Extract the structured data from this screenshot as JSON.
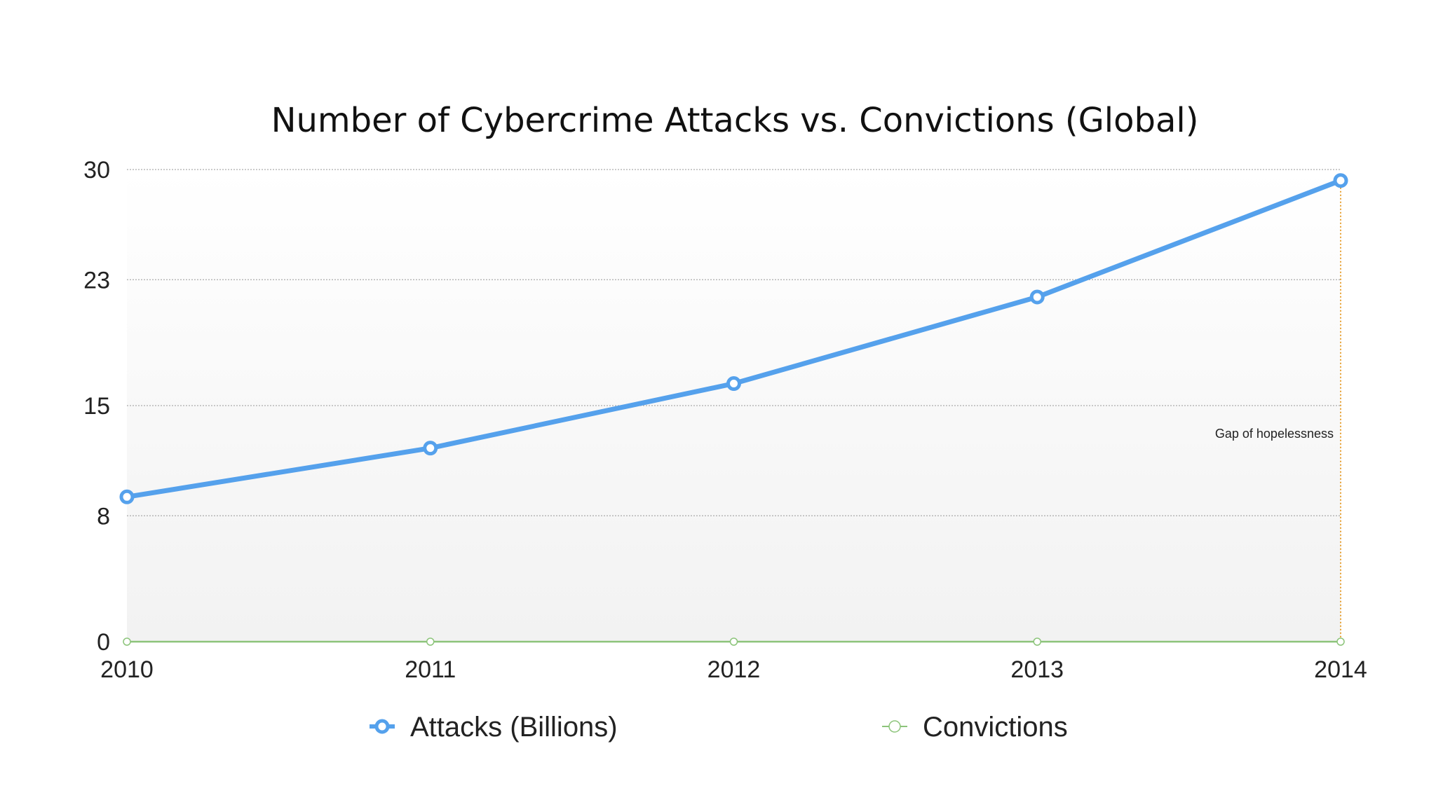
{
  "chart_data": {
    "type": "line",
    "title": "Number of Cybercrime Attacks vs. Convictions (Global)",
    "x": [
      "2010",
      "2011",
      "2012",
      "2013",
      "2014"
    ],
    "y_ticks": [
      0,
      8,
      15,
      23,
      30
    ],
    "ylim": [
      0,
      30
    ],
    "grid": true,
    "legend_position": "bottom",
    "series": [
      {
        "name": "Attacks (Billions)",
        "values": [
          9.2,
          12.3,
          16.4,
          21.9,
          29.3
        ],
        "color": "#55a1ec"
      },
      {
        "name": "Convictions",
        "values": [
          0,
          0,
          0,
          0,
          0
        ],
        "color": "#8cc47a"
      }
    ],
    "annotation": {
      "text": "Gap of hopelessness",
      "x": "2014",
      "color": "#e8a030"
    }
  }
}
